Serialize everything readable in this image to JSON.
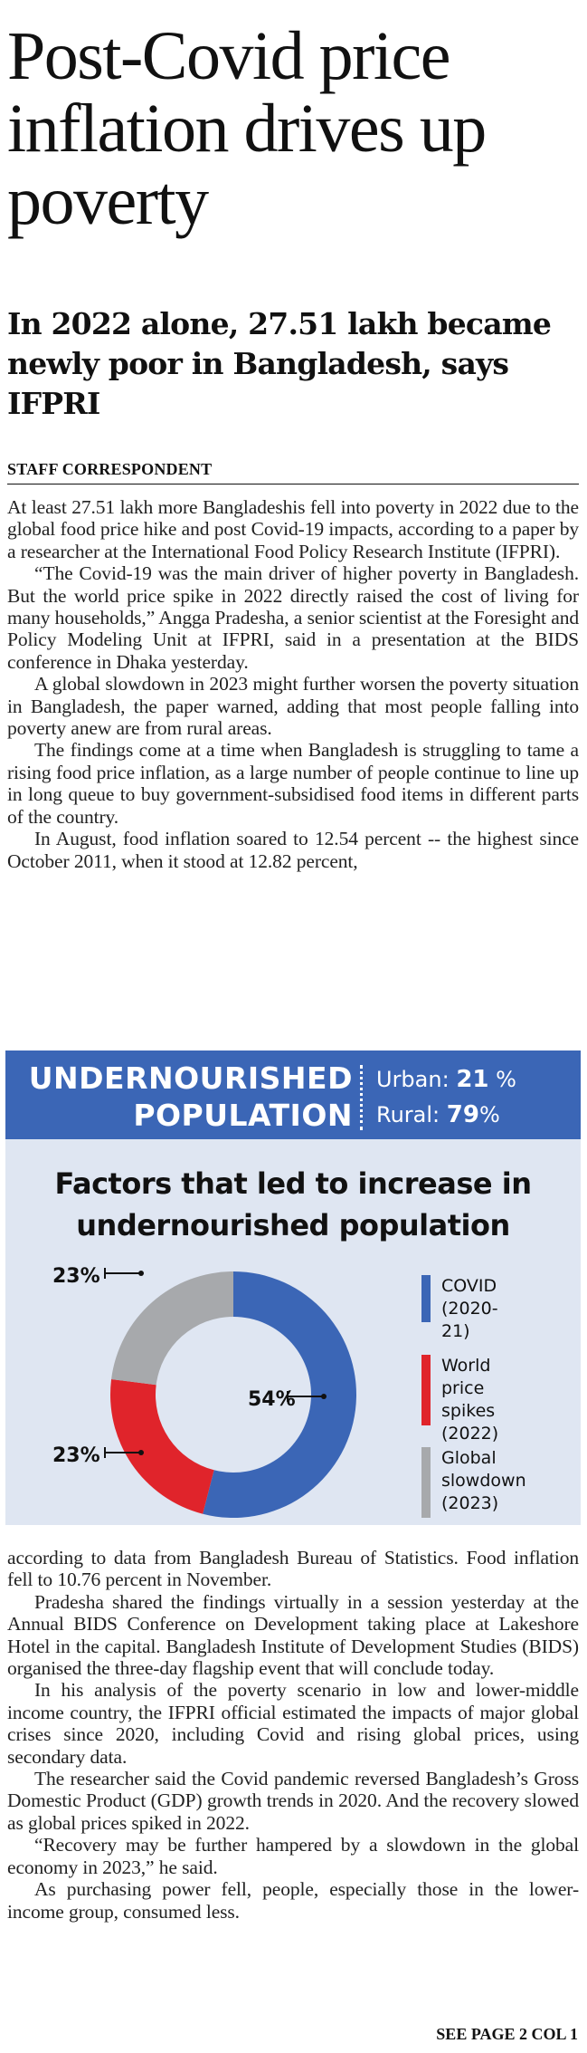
{
  "article": {
    "headline": "Post-Covid price inflation drives up poverty",
    "subhead": "In 2022 alone, 27.51 lakh became newly poor in Bangladesh, says IFPRI",
    "byline": "STAFF CORRESPONDENT",
    "paragraphs_before": [
      "At least 27.51 lakh more Bangladeshis fell into poverty in 2022 due to the global food price hike and post Covid-19 impacts, according to a paper by a researcher at the International Food Policy Research Institute (IFPRI).",
      "“The Covid-19 was the main driver of higher poverty in Bangladesh. But the world price spike in 2022 directly raised the cost of living for many households,” Angga Pradesha, a senior scientist at the Foresight and Policy Modeling Unit at IFPRI, said in a presentation at the BIDS conference in Dhaka yesterday.",
      "A global slowdown in 2023 might further worsen the poverty situation in Bangladesh, the paper warned, adding that most people falling into poverty anew are from rural areas.",
      "The findings come at a time when Bangladesh is struggling to tame a rising food price inflation, as a large number of people continue to line up in long queue to buy government-subsidised food items in different parts of the country.",
      "In August, food inflation soared to 12.54 percent -- the highest since October 2011, when it stood at 12.82 percent,"
    ],
    "paragraphs_after": [
      "according to data from Bangladesh Bureau of Statistics. Food inflation fell to 10.76 percent in November.",
      "Pradesha shared the findings virtually in a session yesterday at the Annual BIDS Conference on Development taking place at Lakeshore Hotel in the capital. Bangladesh Institute of Development Studies (BIDS) organised the three-day flagship event that will conclude today.",
      "In his analysis of the poverty scenario in low and lower-middle income country, the IFPRI official estimated the impacts of major global crises since 2020, including Covid and rising global prices, using secondary data.",
      "The researcher said the Covid pandemic reversed Bangladesh’s Gross Domestic Product (GDP) growth trends in 2020. And the recovery slowed as global prices spiked in 2022.",
      "“Recovery may be further hampered by a slowdown in the global economy in 2023,” he said.",
      "As purchasing power fell, people, especially those in the lower-income group, consumed less."
    ],
    "continuation": "SEE PAGE 2 COL 1"
  },
  "infographic": {
    "band_title_line1": "UNDERNOURISHED",
    "band_title_line2": "POPULATION",
    "urban_label": "Urban:",
    "urban_value": "21",
    "rural_label": "Rural:",
    "rural_value": "79",
    "percent_sign": "%",
    "colors": {
      "band": "#3b66b6",
      "panel": "#dfe6f2",
      "covid": "#3b66b6",
      "world_price": "#e0242b",
      "global_slowdown": "#a7a9ac"
    },
    "chart_data": {
      "type": "pie",
      "title": "Factors that led to increase in undernourished population",
      "donut": true,
      "slices": [
        {
          "name": "COVID (2020-21)",
          "value": 54,
          "label": "54%",
          "color": "#3b66b6"
        },
        {
          "name": "World price spikes (2022)",
          "value": 23,
          "label": "23%",
          "color": "#e0242b"
        },
        {
          "name": "Global slowdown (2023)",
          "value": 23,
          "label": "23%",
          "color": "#a7a9ac"
        }
      ],
      "legend_placement": "right"
    },
    "legend": [
      {
        "text": "COVID\n(2020-21)",
        "color": "#3b66b6"
      },
      {
        "text": "World price\nspikes\n(2022)",
        "color": "#e0242b"
      },
      {
        "text": "Global\nslowdown\n(2023)",
        "color": "#a7a9ac"
      }
    ]
  }
}
